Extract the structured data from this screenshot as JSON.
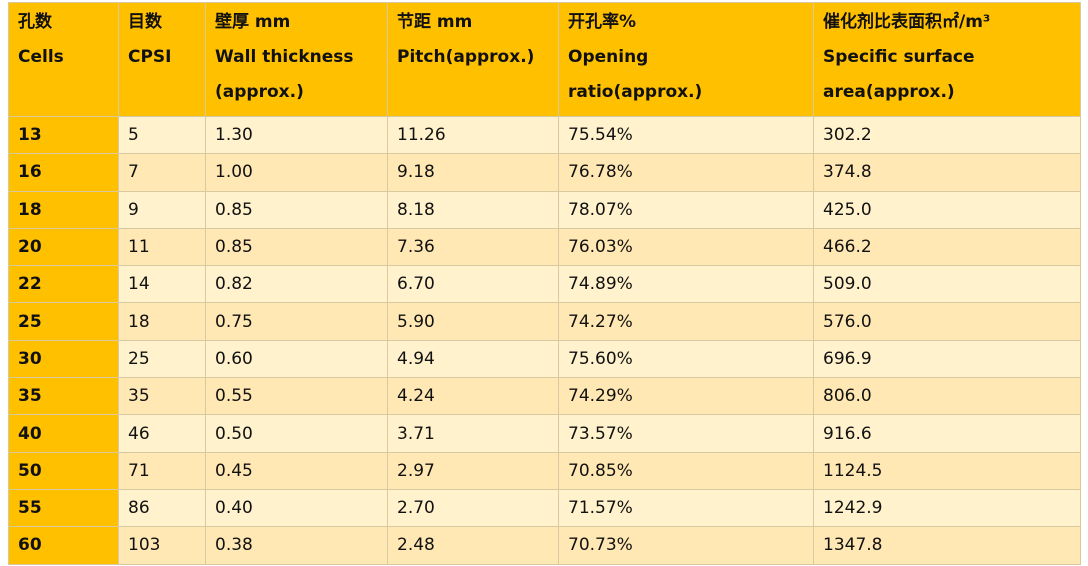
{
  "table": {
    "header": [
      [
        "孔数",
        "Cells"
      ],
      [
        "目数",
        "CPSI"
      ],
      [
        "壁厚 mm",
        "Wall thickness",
        "(approx.)"
      ],
      [
        "节距 mm",
        "Pitch(approx.)"
      ],
      [
        "开孔率%",
        "Opening",
        "ratio(approx.)"
      ],
      [
        "催化剂比表面积㎡/m³",
        "Specific surface",
        "area(approx.)"
      ]
    ],
    "rows": [
      [
        "13",
        "5",
        "1.30",
        "11.26",
        "75.54%",
        "302.2"
      ],
      [
        "16",
        "7",
        "1.00",
        "9.18",
        "76.78%",
        "374.8"
      ],
      [
        "18",
        "9",
        "0.85",
        "8.18",
        "78.07%",
        "425.0"
      ],
      [
        "20",
        "11",
        "0.85",
        "7.36",
        "76.03%",
        "466.2"
      ],
      [
        "22",
        "14",
        "0.82",
        "6.70",
        "74.89%",
        "509.0"
      ],
      [
        "25",
        "18",
        "0.75",
        "5.90",
        "74.27%",
        "576.0"
      ],
      [
        "30",
        "25",
        "0.60",
        "4.94",
        "75.60%",
        "696.9"
      ],
      [
        "35",
        "35",
        "0.55",
        "4.24",
        "74.29%",
        "806.0"
      ],
      [
        "40",
        "46",
        "0.50",
        "3.71",
        "73.57%",
        "916.6"
      ],
      [
        "50",
        "71",
        "0.45",
        "2.97",
        "70.85%",
        "1124.5"
      ],
      [
        "55",
        "86",
        "0.40",
        "2.70",
        "71.57%",
        "1242.9"
      ],
      [
        "60",
        "103",
        "0.38",
        "2.48",
        "70.73%",
        "1347.8"
      ]
    ]
  }
}
